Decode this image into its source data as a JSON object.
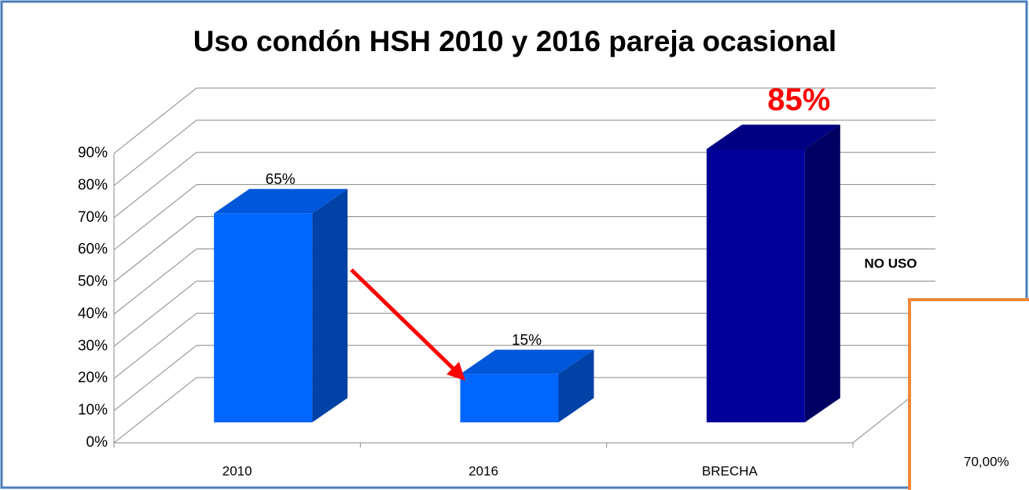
{
  "chart_data": {
    "type": "bar3d",
    "title": "Uso condón HSH 2010 y 2016 pareja ocasional",
    "categories": [
      "2010",
      "2016",
      "BRECHA"
    ],
    "values": [
      65,
      15,
      85
    ],
    "value_labels": [
      "65%",
      "15%",
      "85%"
    ],
    "colors": [
      "#0066ff",
      "#0066ff",
      "#000099"
    ],
    "ylim": [
      0,
      90
    ],
    "yticks": [
      {
        "value": 0,
        "label": "0%"
      },
      {
        "value": 10,
        "label": "10%"
      },
      {
        "value": 20,
        "label": "20%"
      },
      {
        "value": 30,
        "label": "30%"
      },
      {
        "value": 40,
        "label": "40%"
      },
      {
        "value": 50,
        "label": "50%"
      },
      {
        "value": 60,
        "label": "60%"
      },
      {
        "value": 70,
        "label": "70%"
      },
      {
        "value": 80,
        "label": "80%"
      },
      {
        "value": 90,
        "label": "90%"
      }
    ],
    "grid": true,
    "annotations": [
      "NO USO",
      "70,00%"
    ]
  }
}
